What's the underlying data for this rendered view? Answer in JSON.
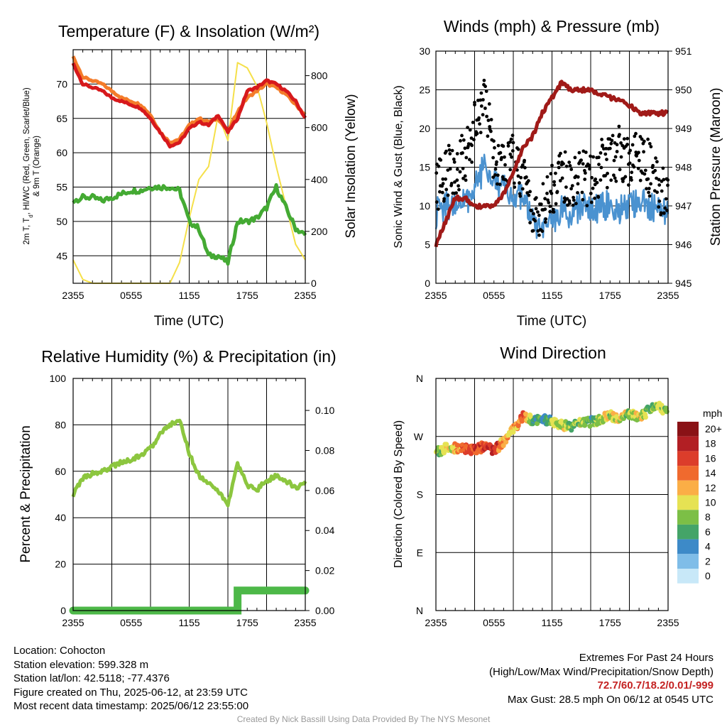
{
  "colors": {
    "temp": "#d7191c",
    "heat_index": "#2ca02c",
    "temp_9m": "#f47c2a",
    "dewpoint": "#44aa33",
    "solar": "#f5e04a",
    "wind": "#4a92d0",
    "gust": "#000000",
    "pressure": "#a01a18",
    "rh": "#8cc63f",
    "precip": "#4db848"
  },
  "chart_data": [
    {
      "type": "line",
      "name": "temperature",
      "title": "Temperature (F) & Insolation (W/m²)",
      "xlabel": "Time (UTC)",
      "ylabel_left": "2m T, Td, HI/WC (Red, Green, Scarlet/Blue) & 9m T (Orange)",
      "ylabel_left_line1": "2m T, T",
      "ylabel_left_sub": "d",
      "ylabel_left_line1_rest": ", HI/WC (Red, Green, Scarlet/Blue)",
      "ylabel_left_line2": "& 9m T (Orange)",
      "ylabel_right": "Solar Insolation (Yellow)",
      "xticks": [
        "2355",
        "0555",
        "1155",
        "1755",
        "2355"
      ],
      "ylim_left": [
        41,
        75
      ],
      "yticks_left": [
        "45",
        "50",
        "55",
        "60",
        "65",
        "70"
      ],
      "ylim_right": [
        0,
        900
      ],
      "yticks_right": [
        "0",
        "200",
        "400",
        "600",
        "800"
      ],
      "hours": [
        0,
        1,
        2,
        3,
        4,
        5,
        6,
        7,
        8,
        9,
        10,
        11,
        12,
        13,
        14,
        15,
        16,
        17,
        18,
        19,
        20,
        21,
        22,
        23,
        24
      ],
      "temp_2m": [
        73.0,
        70.0,
        69.5,
        69.0,
        68.0,
        67.5,
        67.0,
        66.5,
        65.0,
        63.0,
        61.0,
        61.5,
        63.5,
        64.5,
        64.0,
        65.5,
        63.0,
        65.0,
        69.0,
        69.5,
        70.5,
        70.0,
        69.0,
        67.5,
        65.0
      ],
      "temp_9m": [
        74.0,
        71.0,
        70.5,
        70.0,
        69.0,
        68.0,
        67.5,
        67.0,
        65.5,
        63.0,
        61.5,
        62.0,
        64.0,
        65.0,
        64.5,
        65.0,
        63.0,
        66.0,
        68.0,
        69.0,
        70.0,
        69.5,
        68.5,
        67.0,
        65.5
      ],
      "dewpoint": [
        53.0,
        53.5,
        53.5,
        53.0,
        53.5,
        54.0,
        54.5,
        54.5,
        55.0,
        55.0,
        55.0,
        54.5,
        50.0,
        49.0,
        45.0,
        45.0,
        44.0,
        50.0,
        50.0,
        50.5,
        52.0,
        55.0,
        52.0,
        49.0,
        48.0
      ],
      "solar": [
        90,
        15,
        0,
        0,
        0,
        0,
        0,
        0,
        0,
        0,
        0,
        80,
        250,
        400,
        450,
        650,
        550,
        850,
        830,
        760,
        620,
        450,
        300,
        150,
        90
      ]
    },
    {
      "type": "line",
      "name": "winds",
      "title": "Winds (mph) & Pressure (mb)",
      "xlabel": "Time (UTC)",
      "ylabel_left": "Sonic Wind & Gust (Blue, Black)",
      "ylabel_right": "Station Pressure (Maroon)",
      "xticks": [
        "2355",
        "0555",
        "1155",
        "1755",
        "2355"
      ],
      "ylim_left": [
        0,
        30
      ],
      "yticks_left": [
        "0",
        "5",
        "10",
        "15",
        "20",
        "25",
        "30"
      ],
      "ylim_right": [
        945,
        951
      ],
      "yticks_right": [
        "945",
        "946",
        "947",
        "948",
        "949",
        "950",
        "951"
      ],
      "hours": [
        0,
        1,
        2,
        3,
        4,
        5,
        6,
        7,
        8,
        9,
        10,
        11,
        12,
        13,
        14,
        15,
        16,
        17,
        18,
        19,
        20,
        21,
        22,
        23,
        24
      ],
      "wind": [
        9.0,
        10.0,
        10.0,
        10.5,
        12.5,
        15.0,
        14.0,
        12.0,
        11.5,
        11.0,
        8.0,
        6.0,
        8.0,
        9.5,
        9.0,
        10.0,
        9.0,
        10.0,
        10.0,
        9.5,
        10.0,
        11.0,
        10.0,
        9.5,
        8.5
      ],
      "gust": [
        12.0,
        14.0,
        15.0,
        16.0,
        20.0,
        24.0,
        16.0,
        15.0,
        16.0,
        14.0,
        10.0,
        9.0,
        12.0,
        14.0,
        13.0,
        14.0,
        13.0,
        15.0,
        16.0,
        17.0,
        16.0,
        17.0,
        15.0,
        12.0,
        11.0
      ],
      "pressure": [
        946.0,
        946.6,
        947.2,
        947.2,
        947.0,
        947.0,
        947.0,
        947.3,
        947.9,
        948.5,
        948.8,
        949.4,
        949.8,
        950.2,
        950.0,
        950.0,
        950.0,
        949.9,
        949.8,
        949.7,
        949.6,
        949.4,
        949.4,
        949.4,
        949.4
      ]
    },
    {
      "type": "line",
      "name": "humidity",
      "title": "Relative Humidity (%) & Precipitation (in)",
      "ylabel_left": "Percent & Precipitation",
      "xticks": [
        "2355",
        "0555",
        "1155",
        "1755",
        "2355"
      ],
      "ylim_left": [
        0,
        100
      ],
      "yticks_left": [
        "0",
        "20",
        "40",
        "60",
        "80",
        "100"
      ],
      "ylim_right": [
        0,
        0.116
      ],
      "yticks_right": [
        "0.00",
        "0.02",
        "0.04",
        "0.06",
        "0.08",
        "0.10"
      ],
      "hours": [
        0,
        1,
        2,
        3,
        4,
        5,
        6,
        7,
        8,
        9,
        10,
        11,
        12,
        13,
        14,
        15,
        16,
        17,
        18,
        19,
        20,
        21,
        22,
        23,
        24
      ],
      "rh": [
        50,
        57,
        59,
        60,
        62,
        64,
        65,
        67,
        70,
        76,
        80,
        82,
        68,
        58,
        55,
        51,
        46,
        63,
        54,
        52,
        56,
        58,
        56,
        53,
        55
      ],
      "precip": [
        0.0,
        0.0,
        0.0,
        0.0,
        0.0,
        0.0,
        0.0,
        0.0,
        0.0,
        0.0,
        0.0,
        0.0,
        0.0,
        0.0,
        0.0,
        0.0,
        0.0,
        0.01,
        0.01,
        0.01,
        0.01,
        0.01,
        0.01,
        0.01,
        0.01
      ]
    },
    {
      "type": "scatter",
      "name": "wind-direction",
      "title": "Wind Direction",
      "ylabel_left": "Direction (Colored By Speed)",
      "xticks": [
        "2355",
        "0555",
        "1155",
        "1755",
        "2355"
      ],
      "ylim_left": [
        0,
        360
      ],
      "yticks_left": [
        "N",
        "E",
        "S",
        "W",
        "N"
      ],
      "legend_title": "mph",
      "legend_labels": [
        "0",
        "2",
        "4",
        "6",
        "8",
        "10",
        "12",
        "14",
        "16",
        "18",
        "20+"
      ],
      "legend_colors": [
        "#c8e8f8",
        "#7fbde8",
        "#3d8ac8",
        "#44a468",
        "#7cbf46",
        "#e6e253",
        "#fbae46",
        "#f06a2e",
        "#dc3d2b",
        "#b21f24",
        "#8a1216"
      ],
      "hours": [
        0,
        1,
        2,
        3,
        4,
        5,
        6,
        7,
        8,
        9,
        10,
        11,
        12,
        13,
        14,
        15,
        16,
        17,
        18,
        19,
        20,
        21,
        22,
        23,
        24
      ],
      "direction": [
        245,
        252,
        252,
        250,
        250,
        254,
        248,
        262,
        280,
        302,
        296,
        297,
        294,
        288,
        286,
        290,
        292,
        296,
        302,
        298,
        306,
        298,
        312,
        316,
        310
      ],
      "speed": [
        7,
        9,
        12,
        14,
        15,
        16,
        17,
        12,
        11,
        14,
        7,
        5,
        8,
        10,
        7,
        9,
        6,
        10,
        9,
        11,
        8,
        10,
        7,
        8,
        8
      ]
    }
  ],
  "info": {
    "location": "Location: Cohocton",
    "elevation": "Station elevation: 599.328 m",
    "latlon": "Station lat/lon: 42.5118; -77.4376",
    "created": "Figure created on Thu, 2025-06-12, at 23:59 UTC",
    "recent": "Most recent data timestamp: 2025/06/12 23:55:00"
  },
  "extremes": {
    "title": "Extremes For Past 24 Hours",
    "subtitle": "(High/Low/Max Wind/Precipitation/Snow Depth)",
    "values": "72.7/60.7/18.2/0.01/-999",
    "gust": "Max Gust: 28.5 mph On 06/12 at 0545 UTC"
  },
  "credit": "Created By Nick Bassill Using Data Provided By The NYS Mesonet"
}
